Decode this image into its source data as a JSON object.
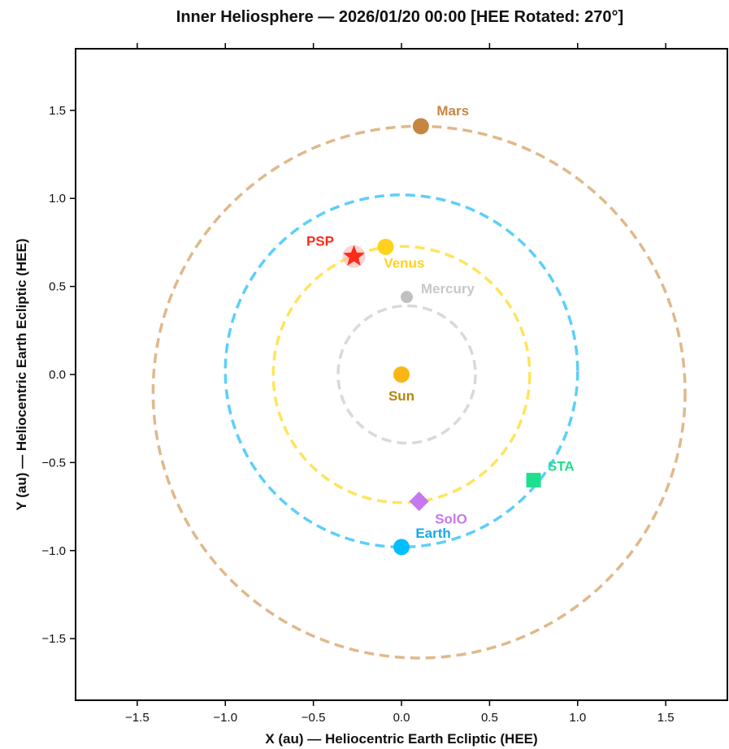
{
  "chart_data": {
    "type": "scatter",
    "title": "Inner Heliosphere  —  2026/01/20 00:00  [HEE Rotated: 270°]",
    "xlabel": "X  (au)  —  Heliocentric Earth Ecliptic (HEE)",
    "ylabel": "Y  (au)  —  Heliocentric Earth Ecliptic (HEE)",
    "xlim": [
      -1.85,
      1.85
    ],
    "ylim": [
      -1.85,
      1.85
    ],
    "xticks": [
      -1.5,
      -1.0,
      -0.5,
      0.0,
      0.5,
      1.0,
      1.5
    ],
    "yticks": [
      -1.5,
      -1.0,
      -0.5,
      0.0,
      0.5,
      1.0,
      1.5
    ],
    "xtick_labels": [
      "−1.5",
      "−1.0",
      "−0.5",
      "0.0",
      "0.5",
      "1.0",
      "1.5"
    ],
    "ytick_labels": [
      "−1.5",
      "−1.0",
      "−0.5",
      "0.0",
      "0.5",
      "1.0",
      "1.5"
    ],
    "grid": false,
    "orbits": [
      {
        "name": "Mercury",
        "cx": 0.03,
        "cy": 0.0,
        "r": 0.39,
        "color": "#d9d9d9"
      },
      {
        "name": "Venus",
        "cx": 0.0,
        "cy": 0.0,
        "r": 0.728,
        "color": "#ffe45c"
      },
      {
        "name": "Earth",
        "cx": 0.0,
        "cy": 0.02,
        "r": 1.0,
        "color": "#5bcffa"
      },
      {
        "name": "Mars",
        "cx": 0.1,
        "cy": -0.1,
        "r": 1.51,
        "color": "#e0b88a"
      }
    ],
    "objects": [
      {
        "label": "Sun",
        "x": 0.0,
        "y": 0.0,
        "marker": "circle",
        "color": "#fbb614",
        "label_color": "#b8860b",
        "dx": 0,
        "dy": 0.12,
        "anchor": "middle"
      },
      {
        "label": "Mercury",
        "x": 0.03,
        "y": 0.44,
        "marker": "circle-small",
        "color": "#c0c0c0",
        "label_color": "#c8c8c8",
        "dx": 0.08,
        "dy": -0.05,
        "anchor": "start"
      },
      {
        "label": "Venus",
        "x": -0.09,
        "y": 0.725,
        "marker": "circle",
        "color": "#ffd21f",
        "label_color": "#ffd21f",
        "dx": -0.01,
        "dy": 0.09,
        "anchor": "start"
      },
      {
        "label": "Earth",
        "x": 0.0,
        "y": -0.98,
        "marker": "circle",
        "color": "#00bfff",
        "label_color": "#1aa8e8",
        "dx": 0.08,
        "dy": -0.08,
        "anchor": "start"
      },
      {
        "label": "Mars",
        "x": 0.11,
        "y": 1.41,
        "marker": "circle",
        "color": "#c68642",
        "label_color": "#c68642",
        "dx": 0.09,
        "dy": -0.09,
        "anchor": "start"
      },
      {
        "label": "PSP",
        "x": -0.27,
        "y": 0.67,
        "marker": "star",
        "color": "#ff2a1a",
        "label_color": "#ff2a1a",
        "dx": -0.27,
        "dy": -0.09,
        "anchor": "start"
      },
      {
        "label": "SolO",
        "x": 0.1,
        "y": -0.72,
        "marker": "diamond",
        "color": "#c678f0",
        "label_color": "#c678f0",
        "dx": 0.09,
        "dy": 0.1,
        "anchor": "start"
      },
      {
        "label": "STA",
        "x": 0.75,
        "y": -0.6,
        "marker": "square",
        "color": "#1ee08c",
        "label_color": "#1ee08c",
        "dx": 0.08,
        "dy": -0.08,
        "anchor": "start"
      }
    ]
  }
}
